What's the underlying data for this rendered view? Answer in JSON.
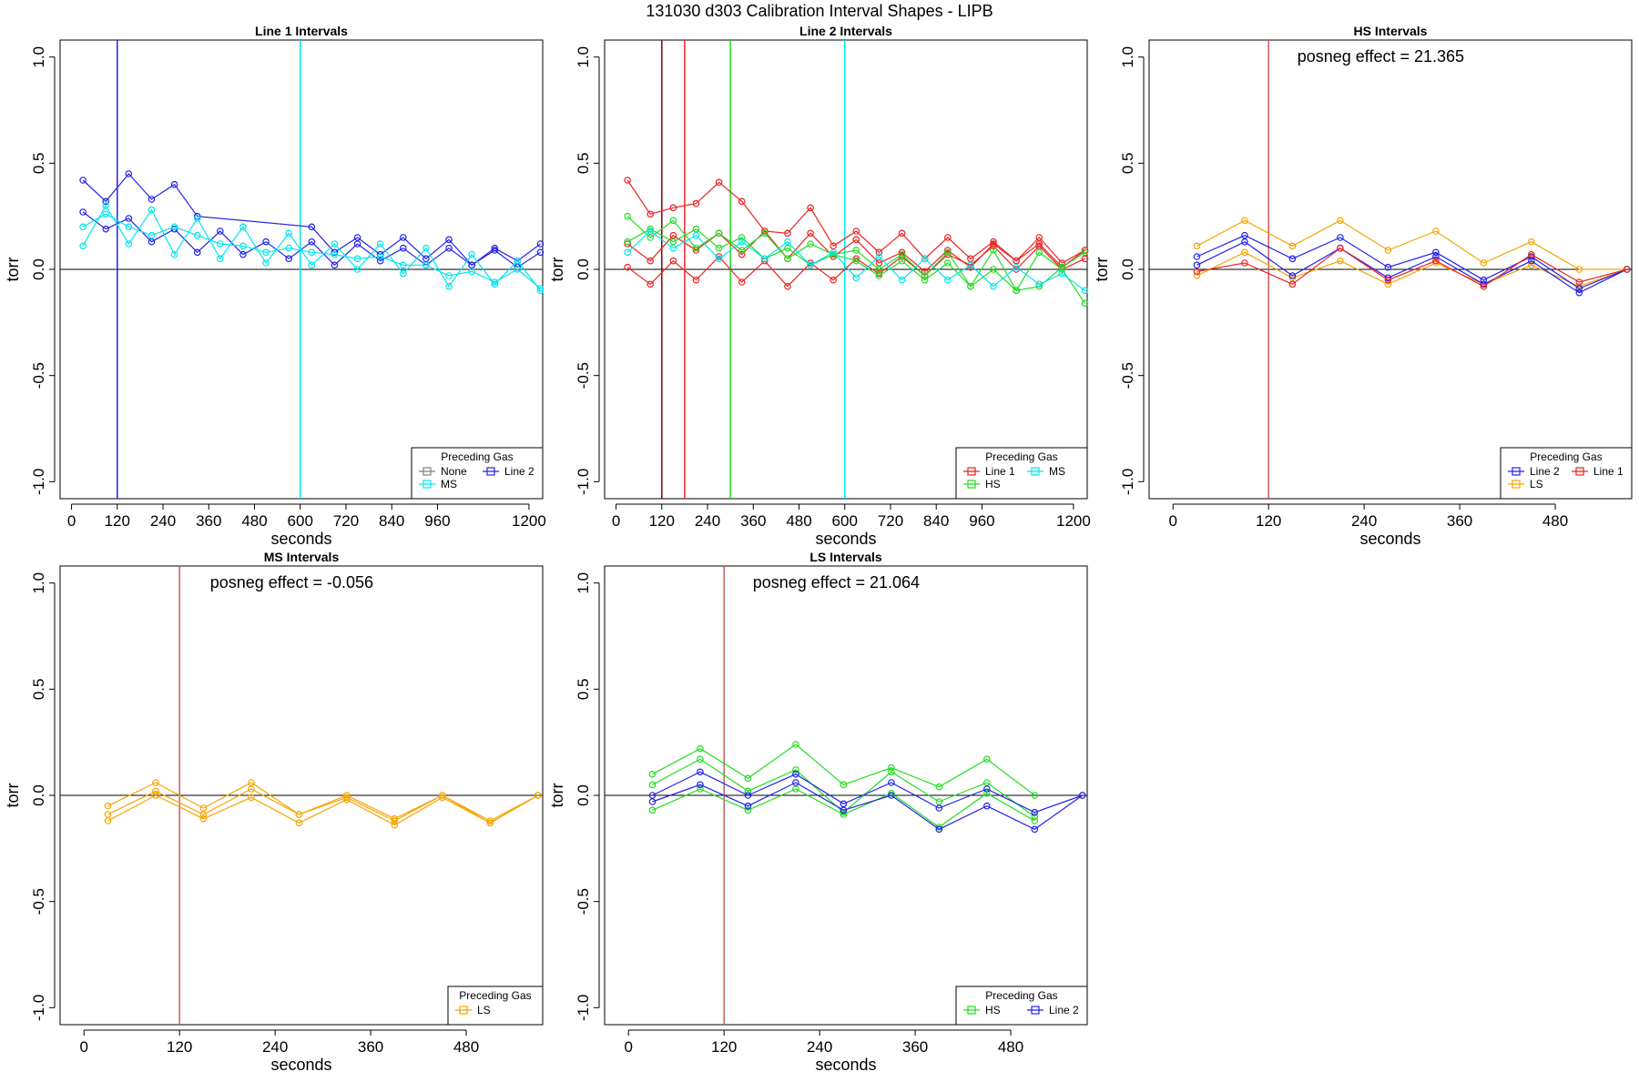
{
  "title": "131030   d303   Calibration Interval Shapes - LIPB",
  "colors": {
    "None": "#808080",
    "MS": "#00e5ee",
    "Line 2": "#2222ee",
    "Line 1": "#ee2222",
    "HS": "#22dd22",
    "LS": "#f5a500",
    "vline_dark": "#8b0000",
    "vline_red": "#cd5c5c"
  },
  "chart_data": [
    {
      "type": "line",
      "title": "Line 1 Intervals",
      "xlabel": "seconds",
      "ylabel": "torr",
      "xlim": [
        -30,
        1236
      ],
      "ylim": [
        -1.08,
        1.08
      ],
      "xticks": [
        0,
        120,
        240,
        360,
        480,
        600,
        720,
        840,
        960,
        1200
      ],
      "yticks": [
        -1.0,
        -0.5,
        0.0,
        0.5,
        1.0
      ],
      "ytick_labels": [
        "-1.0",
        "-0.5",
        "0.0",
        "0.5",
        "1.0"
      ],
      "hline": 0,
      "vlines": [
        {
          "x": 120,
          "color": "Line 2"
        },
        {
          "x": 600,
          "color": "MS"
        }
      ],
      "legend": {
        "title": "Preceding Gas",
        "entries": [
          "None",
          "Line 2",
          "MS"
        ]
      },
      "series": [
        {
          "name": "Line 2",
          "x": [
            30,
            90,
            150,
            210,
            270,
            330,
            630,
            690,
            750,
            810,
            870,
            930,
            990,
            1050,
            1110,
            1170,
            1230
          ],
          "y": [
            0.42,
            0.32,
            0.45,
            0.33,
            0.4,
            0.25,
            0.2,
            0.08,
            0.15,
            0.07,
            0.15,
            0.05,
            0.14,
            0.02,
            0.1,
            0.04,
            0.12
          ]
        },
        {
          "name": "Line 2",
          "x": [
            30,
            90,
            150,
            210,
            270,
            330,
            390,
            450,
            510,
            570,
            630,
            690,
            750,
            810,
            870,
            930,
            990,
            1050,
            1110,
            1170,
            1230
          ],
          "y": [
            0.27,
            0.19,
            0.24,
            0.13,
            0.19,
            0.08,
            0.18,
            0.07,
            0.13,
            0.05,
            0.13,
            0.02,
            0.12,
            0.04,
            0.1,
            0.02,
            0.1,
            0.02,
            0.09,
            0.01,
            0.08
          ]
        },
        {
          "name": "MS",
          "x": [
            30,
            90,
            150,
            210,
            270,
            330,
            390,
            450,
            510,
            570,
            630,
            690,
            750,
            810,
            870,
            930,
            990,
            1050,
            1110,
            1170,
            1230
          ],
          "y": [
            0.11,
            0.3,
            0.12,
            0.28,
            0.07,
            0.24,
            0.05,
            0.2,
            0.03,
            0.17,
            0.02,
            0.12,
            0.0,
            0.12,
            -0.02,
            0.1,
            -0.08,
            0.07,
            -0.07,
            0.04,
            -0.1
          ]
        },
        {
          "name": "MS",
          "x": [
            30,
            90,
            150,
            210,
            270,
            330,
            390,
            450,
            510,
            570,
            630,
            690,
            750,
            810,
            870,
            930,
            990,
            1050,
            1110,
            1170,
            1230
          ],
          "y": [
            0.2,
            0.26,
            0.2,
            0.16,
            0.2,
            0.16,
            0.12,
            0.11,
            0.08,
            0.1,
            0.08,
            0.07,
            0.05,
            0.06,
            0.02,
            0.02,
            -0.03,
            -0.01,
            -0.06,
            0.0,
            -0.09
          ]
        }
      ]
    },
    {
      "type": "line",
      "title": "Line 2 Intervals",
      "xlabel": "seconds",
      "ylabel": "torr",
      "xlim": [
        -30,
        1236
      ],
      "ylim": [
        -1.08,
        1.08
      ],
      "xticks": [
        0,
        120,
        240,
        360,
        480,
        600,
        720,
        840,
        960,
        1200
      ],
      "yticks": [
        -1.0,
        -0.5,
        0.0,
        0.5,
        1.0
      ],
      "ytick_labels": [
        "-1.0",
        "-0.5",
        "0.0",
        "0.5",
        "1.0"
      ],
      "hline": 0,
      "vlines": [
        {
          "x": 120,
          "color": "vline_dark"
        },
        {
          "x": 180,
          "color": "Line 1"
        },
        {
          "x": 300,
          "color": "HS"
        },
        {
          "x": 600,
          "color": "MS"
        }
      ],
      "legend": {
        "title": "Preceding Gas",
        "entries": [
          "Line 1",
          "MS",
          "HS"
        ]
      },
      "series": [
        {
          "name": "Line 1",
          "x": [
            30,
            90,
            150,
            210,
            270,
            330,
            390,
            450,
            510,
            570,
            630,
            690,
            750,
            810,
            870,
            930,
            990,
            1050,
            1110,
            1170,
            1230
          ],
          "y": [
            0.42,
            0.26,
            0.29,
            0.31,
            0.41,
            0.32,
            0.18,
            0.17,
            0.29,
            0.11,
            0.18,
            0.08,
            0.17,
            0.05,
            0.15,
            0.05,
            0.13,
            0.04,
            0.15,
            0.03,
            0.09
          ]
        },
        {
          "name": "Line 1",
          "x": [
            30,
            90,
            150,
            210,
            270,
            330,
            390,
            450,
            510,
            570,
            630,
            690,
            750,
            810,
            870,
            930,
            990,
            1050,
            1110,
            1170,
            1230
          ],
          "y": [
            0.12,
            0.04,
            0.16,
            0.09,
            0.17,
            0.07,
            0.18,
            0.05,
            0.17,
            0.06,
            0.14,
            0.03,
            0.08,
            -0.01,
            0.09,
            0.01,
            0.12,
            0.04,
            0.12,
            0.01,
            0.09
          ]
        },
        {
          "name": "Line 1",
          "x": [
            30,
            90,
            150,
            210,
            270,
            330,
            390,
            450,
            510,
            570,
            630,
            690,
            750,
            810,
            870,
            930,
            990,
            1050,
            1110,
            1170,
            1230
          ],
          "y": [
            0.01,
            -0.07,
            0.04,
            -0.05,
            0.06,
            -0.06,
            0.04,
            -0.08,
            0.03,
            -0.05,
            0.05,
            -0.02,
            0.06,
            -0.03,
            0.07,
            0.02,
            0.11,
            0.0,
            0.11,
            0.0,
            0.05
          ]
        },
        {
          "name": "HS",
          "x": [
            30,
            90,
            150,
            210,
            270,
            330,
            390,
            450,
            510,
            570,
            630,
            690,
            750,
            810,
            870,
            930,
            990,
            1050,
            1110,
            1170,
            1230
          ],
          "y": [
            0.25,
            0.15,
            0.23,
            0.1,
            0.17,
            0.09,
            0.17,
            0.05,
            0.12,
            0.07,
            0.09,
            0.0,
            0.07,
            -0.03,
            0.08,
            -0.08,
            0.09,
            -0.1,
            0.08,
            0.0,
            -0.16
          ]
        },
        {
          "name": "HS",
          "x": [
            30,
            90,
            150,
            210,
            270,
            330,
            390,
            450,
            510,
            570,
            630,
            690,
            750,
            810,
            870,
            930,
            990,
            1050,
            1110,
            1170,
            1230
          ],
          "y": [
            0.13,
            0.19,
            0.13,
            0.19,
            0.1,
            0.15,
            0.05,
            0.1,
            0.02,
            0.07,
            0.04,
            -0.03,
            0.04,
            -0.05,
            0.03,
            -0.08,
            0.0,
            -0.1,
            -0.08,
            0.01,
            0.08
          ]
        },
        {
          "name": "MS",
          "x": [
            30,
            90,
            150,
            210,
            270,
            330,
            390,
            450,
            510,
            570,
            630,
            690,
            750,
            810,
            870,
            930,
            990,
            1050,
            1110,
            1170,
            1230
          ],
          "y": [
            0.08,
            0.18,
            0.1,
            0.16,
            0.05,
            0.13,
            0.05,
            0.13,
            0.02,
            0.08,
            -0.04,
            0.06,
            -0.05,
            0.05,
            -0.05,
            0.02,
            -0.08,
            0.01,
            -0.07,
            -0.02,
            -0.1
          ]
        }
      ]
    },
    {
      "type": "line",
      "title": "HS Intervals",
      "xlabel": "seconds",
      "ylabel": "torr",
      "annotation": "posneg effect = 21.365",
      "xlim": [
        -30,
        576
      ],
      "ylim": [
        -1.08,
        1.08
      ],
      "xticks": [
        0,
        120,
        240,
        360,
        480
      ],
      "yticks": [
        -1.0,
        -0.5,
        0.0,
        0.5,
        1.0
      ],
      "ytick_labels": [
        "-1.0",
        "-0.5",
        "0.0",
        "0.5",
        "1.0"
      ],
      "hline": 0,
      "vlines": [
        {
          "x": 120,
          "color": "vline_red"
        }
      ],
      "legend": {
        "title": "Preceding Gas",
        "entries": [
          "Line 2",
          "Line 1",
          "LS"
        ]
      },
      "series": [
        {
          "name": "LS",
          "x": [
            30,
            90,
            150,
            210,
            270,
            330,
            390,
            450,
            510,
            570
          ],
          "y": [
            0.11,
            0.23,
            0.11,
            0.23,
            0.09,
            0.18,
            0.03,
            0.13,
            0.0,
            0.0
          ]
        },
        {
          "name": "LS",
          "x": [
            30,
            90,
            150,
            210,
            270,
            330,
            390,
            450,
            510,
            570
          ],
          "y": [
            -0.03,
            0.08,
            -0.04,
            0.04,
            -0.07,
            0.03,
            -0.07,
            0.02,
            -0.08,
            0.0
          ]
        },
        {
          "name": "Line 2",
          "x": [
            30,
            90,
            150,
            210,
            270,
            330,
            390,
            450,
            510,
            570
          ],
          "y": [
            0.06,
            0.16,
            0.05,
            0.15,
            0.01,
            0.08,
            -0.05,
            0.06,
            -0.09,
            0.0
          ]
        },
        {
          "name": "Line 2",
          "x": [
            30,
            90,
            150,
            210,
            270,
            330,
            390,
            450,
            510,
            570
          ],
          "y": [
            0.02,
            0.13,
            -0.03,
            0.1,
            -0.04,
            0.06,
            -0.07,
            0.04,
            -0.11,
            0.0
          ]
        },
        {
          "name": "Line 1",
          "x": [
            30,
            90,
            150,
            210,
            270,
            330,
            390,
            450,
            510,
            570
          ],
          "y": [
            -0.01,
            0.03,
            -0.07,
            0.1,
            -0.05,
            0.04,
            -0.08,
            0.07,
            -0.06,
            0.0
          ]
        }
      ]
    },
    {
      "type": "line",
      "title": "MS Intervals",
      "xlabel": "seconds",
      "ylabel": "torr",
      "annotation": "posneg effect = -0.056",
      "xlim": [
        -30,
        576
      ],
      "ylim": [
        -1.08,
        1.08
      ],
      "xticks": [
        0,
        120,
        240,
        360,
        480
      ],
      "yticks": [
        -1.0,
        -0.5,
        0.0,
        0.5,
        1.0
      ],
      "ytick_labels": [
        "-1.0",
        "-0.5",
        "0.0",
        "0.5",
        "1.0"
      ],
      "hline": 0,
      "vlines": [
        {
          "x": 120,
          "color": "vline_red"
        }
      ],
      "legend": {
        "title": "Preceding Gas",
        "entries": [
          "LS"
        ]
      },
      "series": [
        {
          "name": "LS",
          "x": [
            30,
            90,
            150,
            210,
            270,
            330,
            390,
            450,
            510,
            570
          ],
          "y": [
            -0.05,
            0.06,
            -0.06,
            0.06,
            -0.09,
            0.0,
            -0.11,
            0.0,
            -0.13,
            0.0
          ]
        },
        {
          "name": "LS",
          "x": [
            30,
            90,
            150,
            210,
            270,
            330,
            390,
            450,
            510,
            570
          ],
          "y": [
            -0.09,
            0.02,
            -0.09,
            0.03,
            -0.09,
            -0.01,
            -0.12,
            0.0,
            -0.12,
            0.0
          ]
        },
        {
          "name": "LS",
          "x": [
            30,
            90,
            150,
            210,
            270,
            330,
            390,
            450,
            510,
            570
          ],
          "y": [
            -0.12,
            0.0,
            -0.11,
            -0.01,
            -0.13,
            -0.02,
            -0.14,
            -0.01,
            -0.13,
            0.0
          ]
        }
      ]
    },
    {
      "type": "line",
      "title": "LS Intervals",
      "xlabel": "seconds",
      "ylabel": "torr",
      "annotation": "posneg effect = 21.064",
      "xlim": [
        -30,
        576
      ],
      "ylim": [
        -1.08,
        1.08
      ],
      "xticks": [
        0,
        120,
        240,
        360,
        480
      ],
      "yticks": [
        -1.0,
        -0.5,
        0.0,
        0.5,
        1.0
      ],
      "ytick_labels": [
        "-1.0",
        "-0.5",
        "0.0",
        "0.5",
        "1.0"
      ],
      "hline": 0,
      "vlines": [
        {
          "x": 120,
          "color": "vline_red"
        }
      ],
      "legend": {
        "title": "Preceding Gas",
        "entries": [
          "HS",
          "Line 2"
        ]
      },
      "series": [
        {
          "name": "HS",
          "x": [
            30,
            90,
            150,
            210,
            270,
            330,
            390,
            450,
            510
          ],
          "y": [
            0.1,
            0.22,
            0.08,
            0.24,
            0.05,
            0.13,
            0.04,
            0.17,
            0.0
          ]
        },
        {
          "name": "HS",
          "x": [
            30,
            90,
            150,
            210,
            270,
            330,
            390,
            450,
            510
          ],
          "y": [
            0.05,
            0.17,
            0.02,
            0.12,
            -0.08,
            0.11,
            -0.03,
            0.06,
            -0.1
          ]
        },
        {
          "name": "HS",
          "x": [
            30,
            90,
            150,
            210,
            270,
            330,
            390,
            450,
            510
          ],
          "y": [
            -0.07,
            0.03,
            -0.07,
            0.03,
            -0.09,
            0.01,
            -0.15,
            0.01,
            -0.12
          ]
        },
        {
          "name": "Line 2",
          "x": [
            30,
            90,
            150,
            210,
            270,
            330,
            390,
            450,
            510,
            570
          ],
          "y": [
            0.0,
            0.11,
            0.0,
            0.1,
            -0.04,
            0.06,
            -0.06,
            0.03,
            -0.08,
            0.0
          ]
        },
        {
          "name": "Line 2",
          "x": [
            30,
            90,
            150,
            210,
            270,
            330,
            390,
            450,
            510,
            570
          ],
          "y": [
            -0.03,
            0.05,
            -0.05,
            0.06,
            -0.07,
            0.0,
            -0.16,
            -0.05,
            -0.16,
            0.0
          ]
        }
      ]
    }
  ]
}
